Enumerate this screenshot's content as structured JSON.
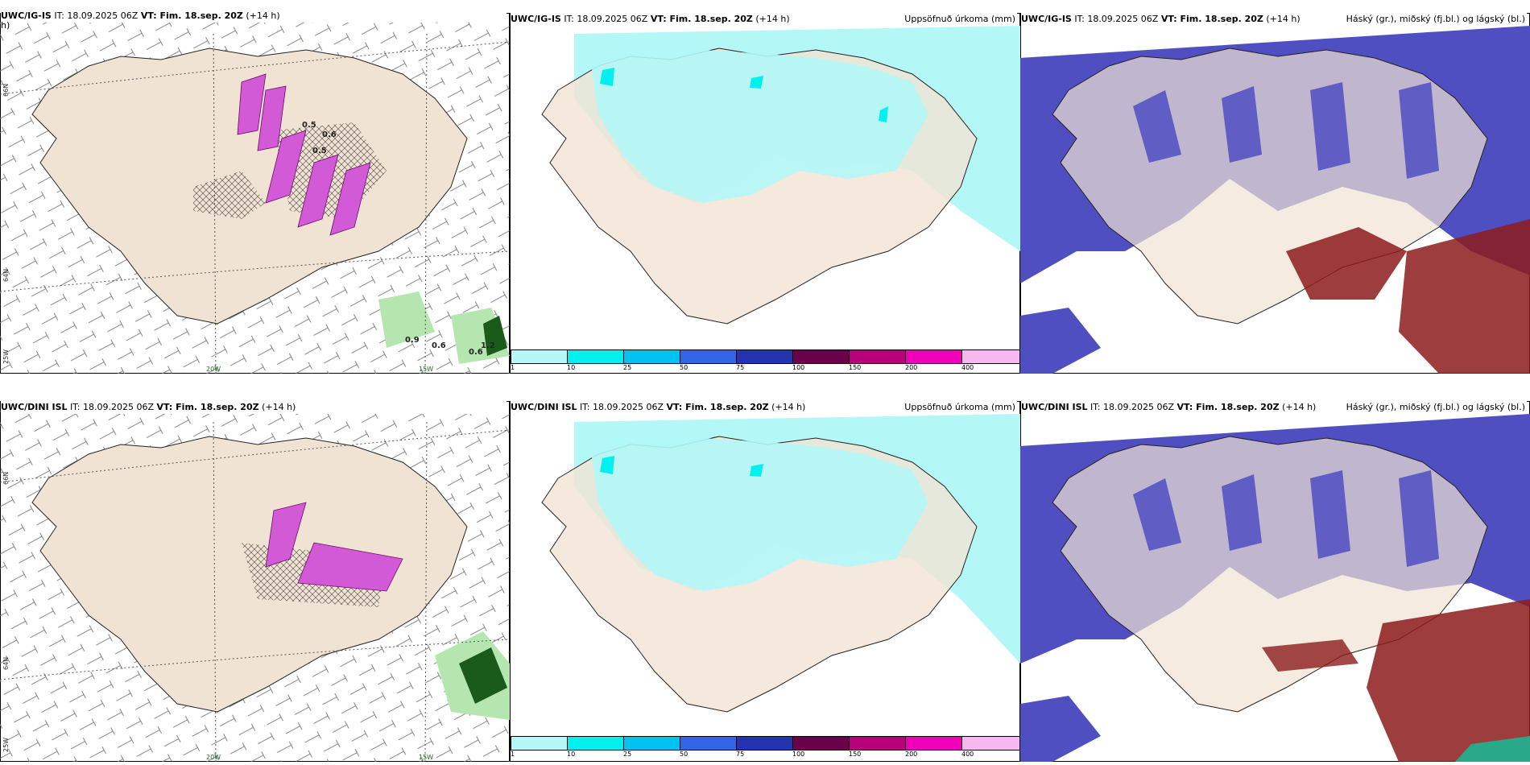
{
  "panels": [
    {
      "model": "UWC/IG-IS",
      "init": "IT: 18.09.2025 06Z",
      "valid": "VT: Fim. 18.sep. 20Z",
      "lead": "(+14 h)",
      "title": "",
      "wrap": "h)"
    },
    {
      "model": "UWC/IG-IS",
      "init": "IT: 18.09.2025 06Z",
      "valid": "VT: Fim. 18.sep. 20Z",
      "lead": "(+14 h)",
      "title": "Uppsöfnuð úrkoma (mm)"
    },
    {
      "model": "UWC/IG-IS",
      "init": "IT: 18.09.2025 06Z",
      "valid": "VT: Fim. 18.sep. 20Z",
      "lead": "(+14 h)",
      "title": "Háský (gr.), miðský (fj.bl.) og lágský (bl.)"
    },
    {
      "model": "UWC/DINI ISL",
      "init": "IT: 18.09.2025 06Z",
      "valid": "VT: Fim. 18.sep. 20Z",
      "lead": "(+14 h)",
      "title": ""
    },
    {
      "model": "UWC/DINI ISL",
      "init": "IT: 18.09.2025 06Z",
      "valid": "VT: Fim. 18.sep. 20Z",
      "lead": "(+14 h)",
      "title": "Uppsöfnuð úrkoma (mm)"
    },
    {
      "model": "UWC/DINI ISL",
      "init": "IT: 18.09.2025 06Z",
      "valid": "VT: Fim. 18.sep. 20Z",
      "lead": "(+14 h)",
      "title": "Háský (gr.), miðský (fj.bl.) og lágský (bl.)"
    }
  ],
  "gridlabels": {
    "lat66": "66N",
    "lat64": "64N",
    "lon25": "25W",
    "lon20": "20W",
    "lon15": "15W"
  },
  "precip_legend": {
    "colors": [
      "#b3f7f7",
      "#00f0f0",
      "#00c3f0",
      "#3266e6",
      "#2633b0",
      "#6b004b",
      "#b8007a",
      "#f000b8",
      "#f7b8f0"
    ],
    "ticks": [
      "1",
      "10",
      "25",
      "50",
      "75",
      "100",
      "150",
      "200",
      "400"
    ]
  },
  "labels": {
    "p0": [
      "0.5",
      "0.6",
      "0.5",
      "0.9",
      "0.6",
      "0.6",
      "1.2"
    ],
    "p3": []
  },
  "colors": {
    "land": "#f1e3d3",
    "precip_light": "#b3f7f7",
    "precip_mid": "#00f0f0",
    "cloud_low": "#4f4fc2",
    "cloud_high": "#8c1b1b",
    "magenta": "#d25ad7",
    "green": "#4aa54a"
  }
}
